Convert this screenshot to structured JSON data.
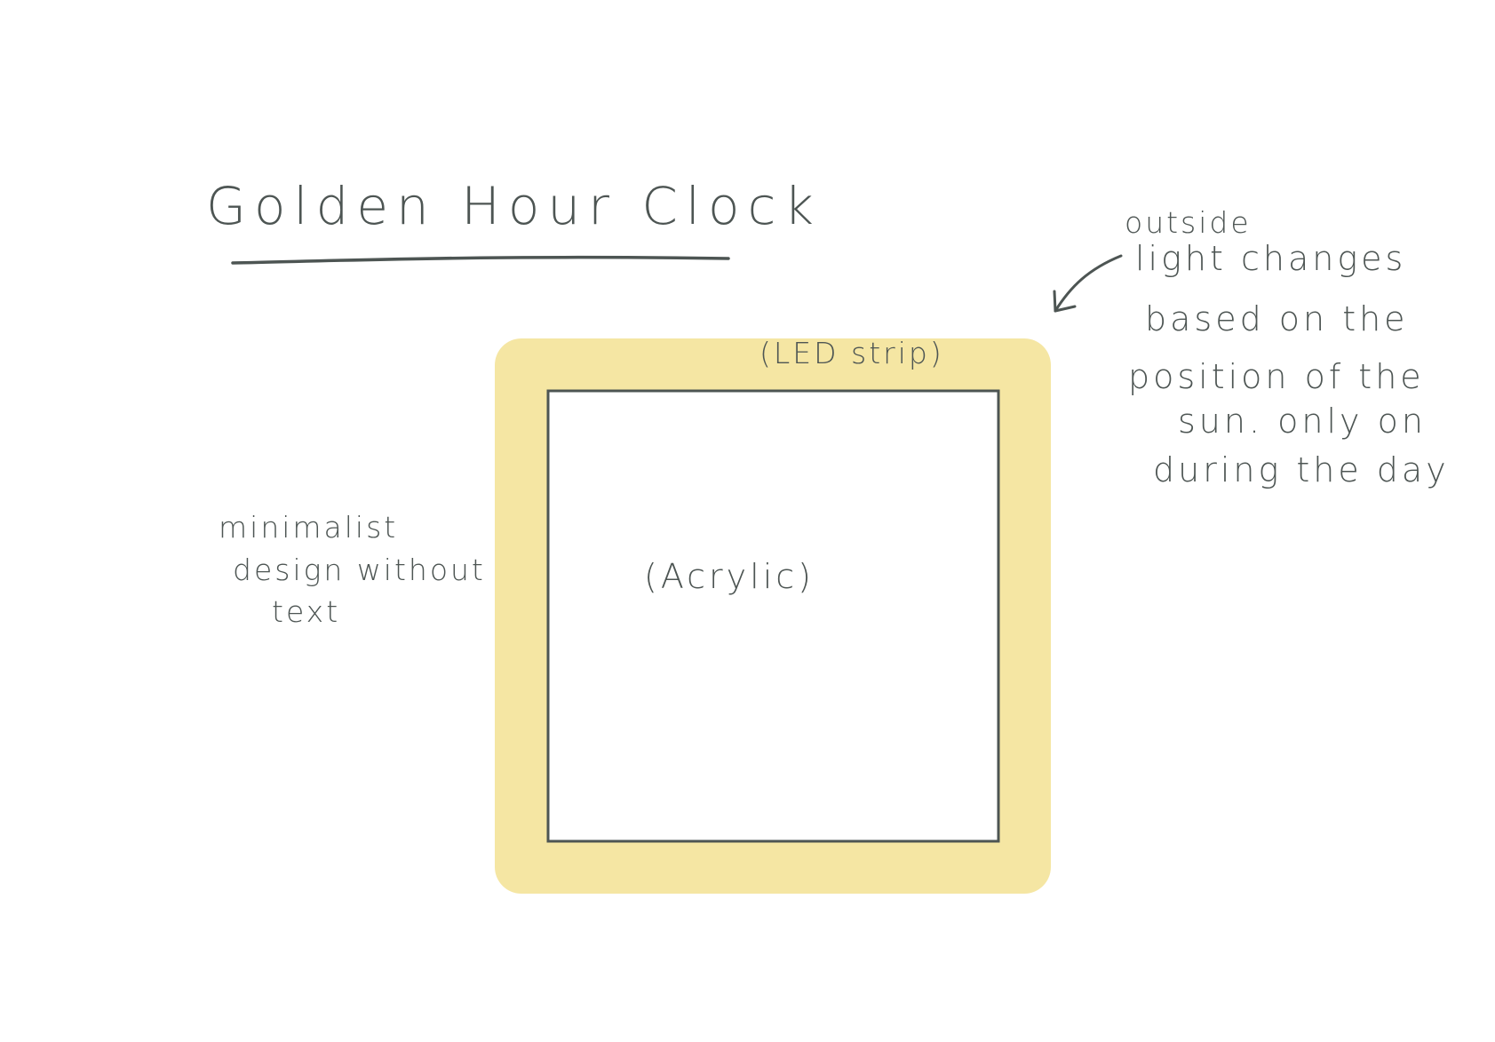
{
  "title": "Golden Hour Clock",
  "labels": {
    "led_strip": "(LED strip)",
    "acrylic": "(Acrylic)",
    "left_note": [
      "minimalist",
      "design without",
      "text"
    ],
    "right_note": [
      "outside",
      "light changes",
      "based on the",
      "position of the",
      "sun. only on",
      "during the day"
    ]
  },
  "colors": {
    "frame": "#f5e6a3",
    "ink": "#4d5553",
    "background": "#ffffff"
  }
}
